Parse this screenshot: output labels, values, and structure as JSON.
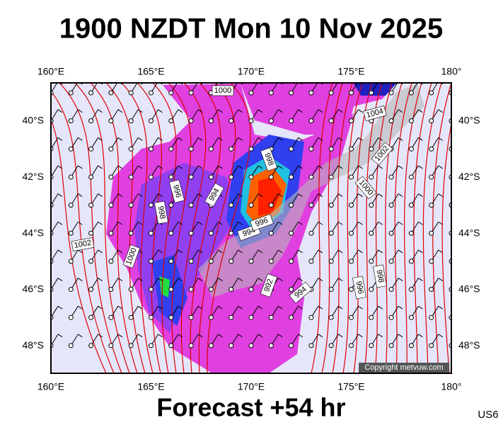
{
  "header": {
    "title": "1900 NZDT Mon 10 Nov 2025"
  },
  "map": {
    "lon_labels": [
      "160°E",
      "165°E",
      "170°E",
      "175°E",
      "180°"
    ],
    "lat_labels": [
      "40°S",
      "42°S",
      "44°S",
      "46°S",
      "48°S"
    ],
    "isobar_labels": [
      "1000",
      "1004",
      "1002",
      "1000",
      "998",
      "996",
      "994",
      "998",
      "1002",
      "1000",
      "994",
      "996",
      "992",
      "994",
      "996",
      "998"
    ],
    "copyright": "Copyright metvuw.com"
  },
  "footer": {
    "forecast": "Forecast +54 hr",
    "code": "US6"
  }
}
